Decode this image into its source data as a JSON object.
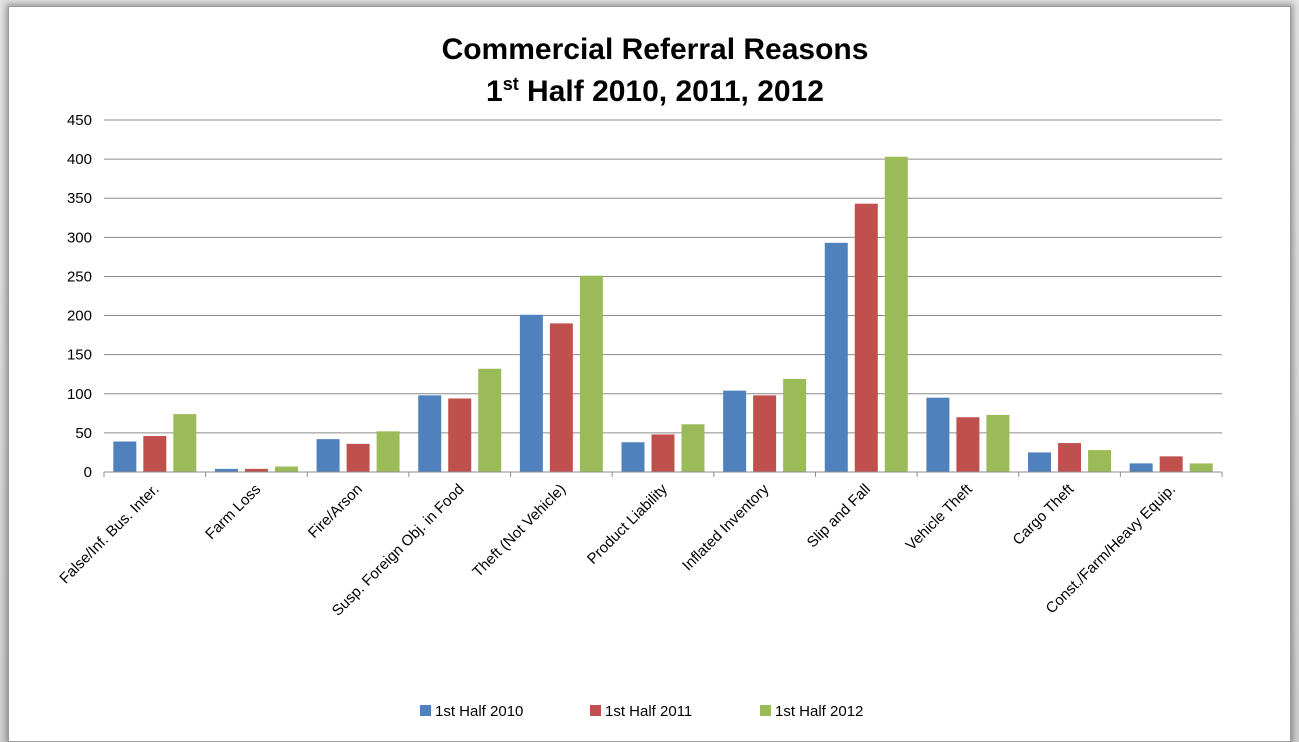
{
  "chart_data": {
    "type": "bar",
    "title": "Commercial Referral Reasons",
    "subtitle_prefix": "1",
    "subtitle_superscript": "st",
    "subtitle_rest": " Half 2010, 2011, 2012",
    "categories": [
      "False/Inf. Bus. Inter.",
      "Farm Loss",
      "Fire/Arson",
      "Susp. Foreign Obj. in Food",
      "Theft (Not Vehicle)",
      "Product Liability",
      "Inflated Inventory",
      "Slip and Fall",
      "Vehicle Theft",
      "Cargo Theft",
      "Const./Farm/Heavy Equip."
    ],
    "series": [
      {
        "name": "1st Half 2010",
        "color": "#4F81BD",
        "values": [
          39,
          4,
          42,
          98,
          201,
          38,
          104,
          293,
          95,
          25,
          11
        ]
      },
      {
        "name": "1st Half 2011",
        "color": "#C0504D",
        "values": [
          46,
          4,
          36,
          94,
          190,
          48,
          98,
          343,
          70,
          37,
          20
        ]
      },
      {
        "name": "1st Half 2012",
        "color": "#9BBB59",
        "values": [
          74,
          7,
          52,
          132,
          251,
          61,
          119,
          403,
          73,
          28,
          11
        ]
      }
    ],
    "ylim": [
      0,
      450
    ],
    "yticks": [
      "0",
      "50",
      "100",
      "150",
      "200",
      "250",
      "300",
      "350",
      "400",
      "450"
    ],
    "grid": true,
    "legend_position": "bottom"
  }
}
